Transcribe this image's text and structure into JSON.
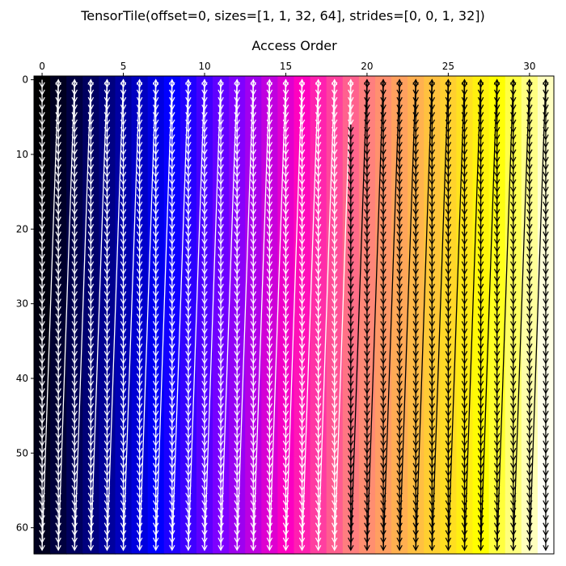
{
  "figure": {
    "suptitle": "TensorTile(offset=0, sizes=[1, 1, 32, 64], strides=[0, 0, 1, 32])"
  },
  "chart_data": {
    "type": "heatmap",
    "title": "Access Order",
    "xlabel": "",
    "ylabel": "",
    "colormap": "gnuplot2",
    "colormap_stops": [
      "#000000",
      "#00007f",
      "#0000ff",
      "#7f00ff",
      "#ff00c0",
      "#ff7f7f",
      "#ffc040",
      "#ffff00",
      "#ffffff"
    ],
    "n_cols": 32,
    "n_rows": 64,
    "xlim": [
      -0.5,
      31.5
    ],
    "ylim": [
      63.5,
      -0.5
    ],
    "x_axis_position": "top",
    "x_ticks": [
      0,
      5,
      10,
      15,
      20,
      25,
      30
    ],
    "y_ticks": [
      0,
      10,
      20,
      30,
      40,
      50,
      60
    ],
    "access_order": "value(row, col) = col * 64 + row",
    "value_range": [
      0,
      2047
    ],
    "arrows": "one arrow per step, from each element to the next in access order",
    "arrow_colors": {
      "dark_cells": "#ffffff",
      "light_cells": "#000000"
    }
  }
}
